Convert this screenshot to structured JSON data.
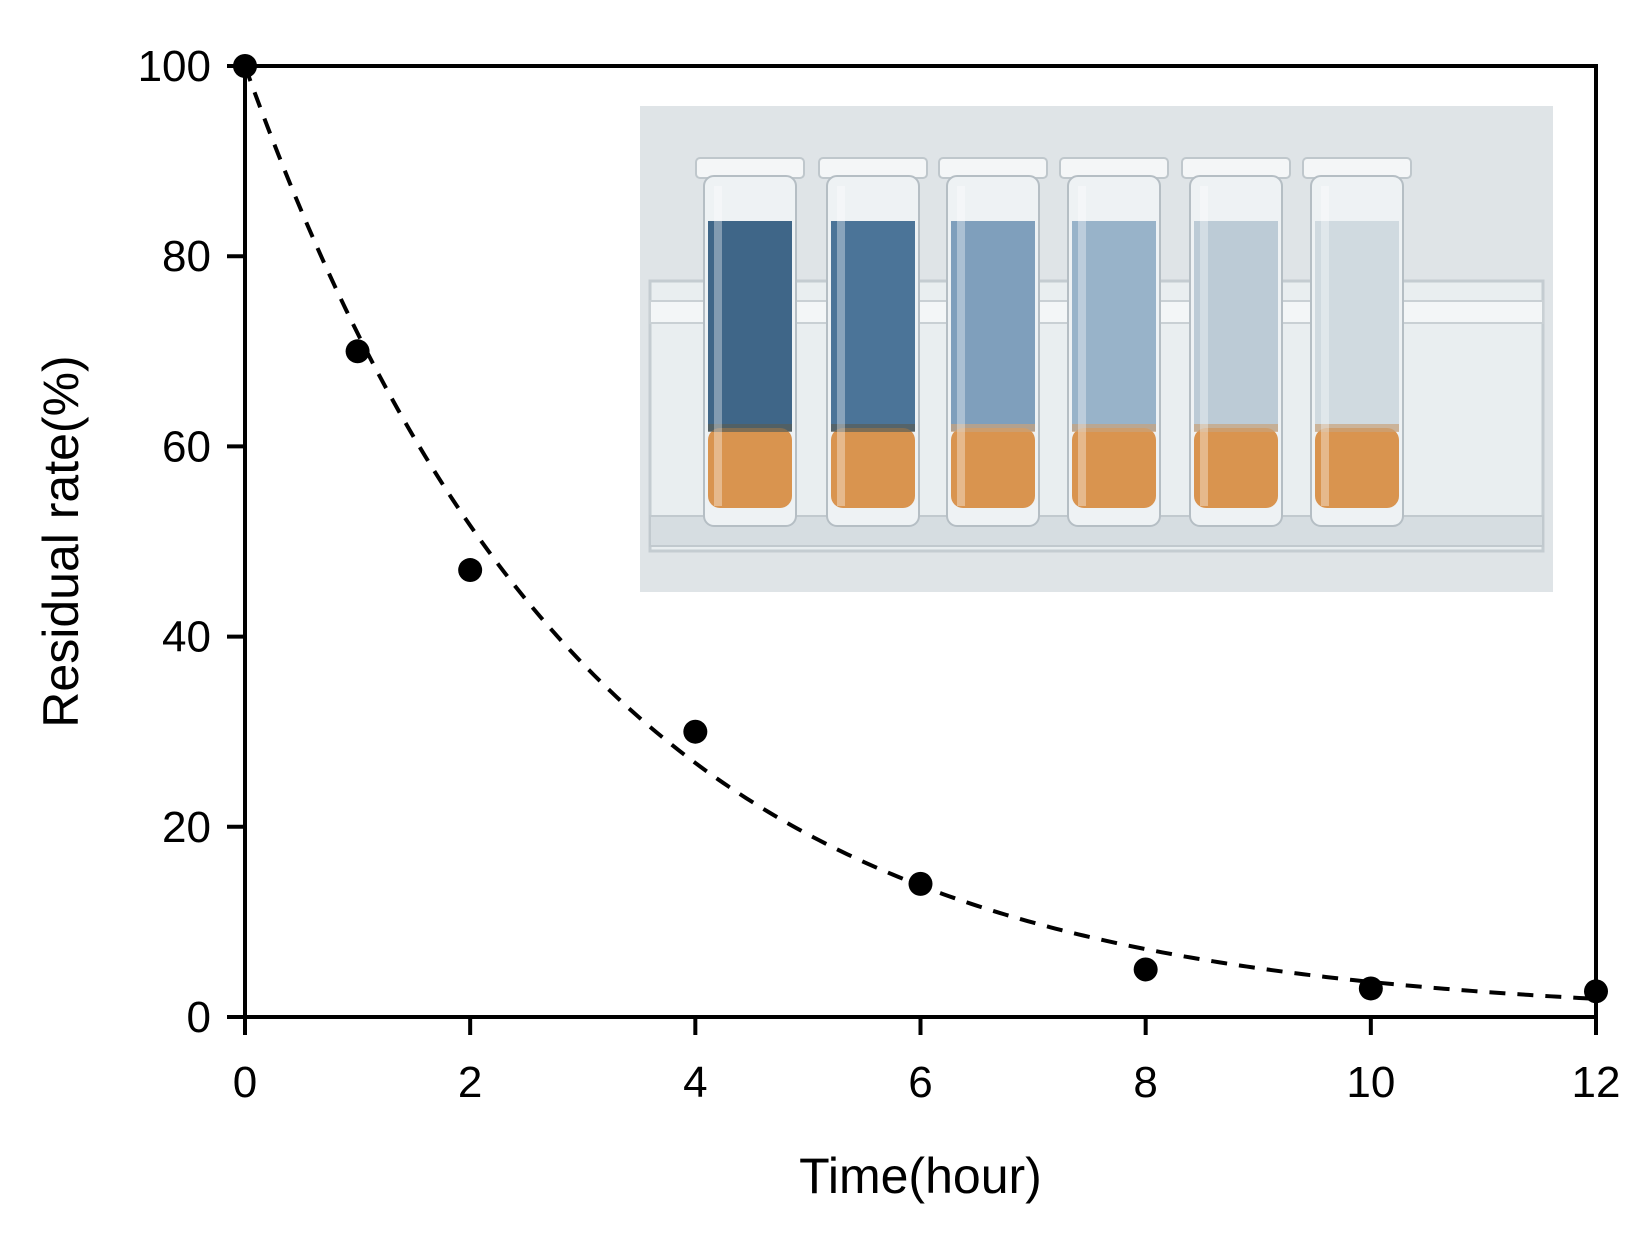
{
  "chart_data": {
    "type": "scatter",
    "title": "",
    "xlabel": "Time(hour)",
    "ylabel": "Residual rate(%)",
    "xlim": [
      0,
      12
    ],
    "ylim": [
      0,
      100
    ],
    "x_ticks": [
      0,
      2,
      4,
      6,
      8,
      10,
      12
    ],
    "y_ticks": [
      0,
      20,
      40,
      60,
      80,
      100
    ],
    "x_tick_labels": [
      "0",
      "2",
      "4",
      "6",
      "8",
      "10",
      "12"
    ],
    "y_tick_labels": [
      "0",
      "20",
      "40",
      "60",
      "80",
      "100"
    ],
    "grid": false,
    "legend": "none",
    "series": [
      {
        "marker": "filled-circle",
        "color": "#000000",
        "x": [
          0,
          1,
          2,
          4,
          6,
          8,
          10,
          12
        ],
        "y": [
          100,
          70,
          47,
          30,
          14,
          5,
          3,
          2.7
        ]
      }
    ],
    "fit_curve": {
      "style": "dashed",
      "color": "#000000",
      "form": "exponential decay",
      "a": 100,
      "k": 0.33
    },
    "inset": {
      "kind": "photo",
      "subject": "six test tubes with blue liquid fading to clear above orange sediment",
      "tube_count": 6,
      "liquid_colors": [
        "#3f6688",
        "#4b7498",
        "#7f9fbc",
        "#98b3c9",
        "#bccbd6",
        "#d0dae0"
      ],
      "sediment_color": "#d9944f",
      "background_color": "#dfe4e7"
    }
  }
}
